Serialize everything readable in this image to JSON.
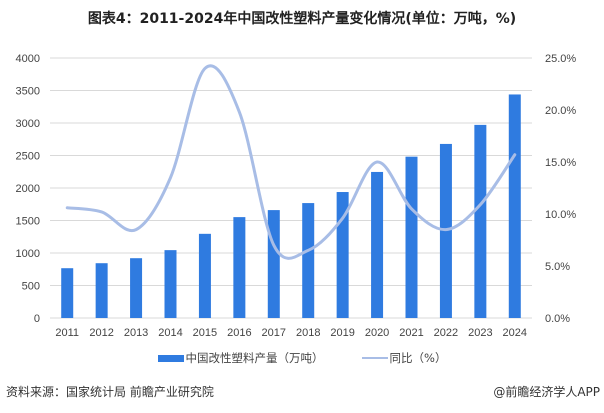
{
  "title": "图表4：2011-2024年中国改性塑料产量变化情况(单位：万吨，%)",
  "source": "资料来源：国家统计局 前瞻产业研究院",
  "brand": "@前瞻经济学人APP",
  "colors": {
    "bar": "#2F7BE0",
    "line": "#A8BDE6",
    "grid": "#D9D9D9"
  },
  "chart_data": {
    "type": "bar+line",
    "title": "图表4：2011-2024年中国改性塑料产量变化情况(单位：万吨，%)",
    "categories": [
      "2011",
      "2012",
      "2013",
      "2014",
      "2015",
      "2016",
      "2017",
      "2018",
      "2019",
      "2020",
      "2021",
      "2022",
      "2023",
      "2024"
    ],
    "series": [
      {
        "name": "中国改性塑料产量（万吨）",
        "type": "bar",
        "axis": "left",
        "values": [
          766,
          843,
          920,
          1044,
          1295,
          1552,
          1660,
          1768,
          1938,
          2247,
          2482,
          2678,
          2971,
          3439
        ]
      },
      {
        "name": "同比（%）",
        "type": "line",
        "axis": "right",
        "values": [
          10.6,
          10.2,
          8.5,
          13.5,
          24.0,
          19.8,
          7.0,
          6.5,
          9.6,
          15.0,
          10.5,
          8.5,
          10.9,
          15.7
        ]
      }
    ],
    "left_axis": {
      "ylim": [
        0,
        4000
      ],
      "ticks": [
        "0",
        "500",
        "1000",
        "1500",
        "2000",
        "2500",
        "3000",
        "3500",
        "4000"
      ]
    },
    "right_axis": {
      "ylim": [
        0,
        25
      ],
      "ticks": [
        "0.0%",
        "5.0%",
        "10.0%",
        "15.0%",
        "20.0%",
        "25.0%"
      ]
    },
    "grid": true,
    "legend_position": "bottom"
  }
}
